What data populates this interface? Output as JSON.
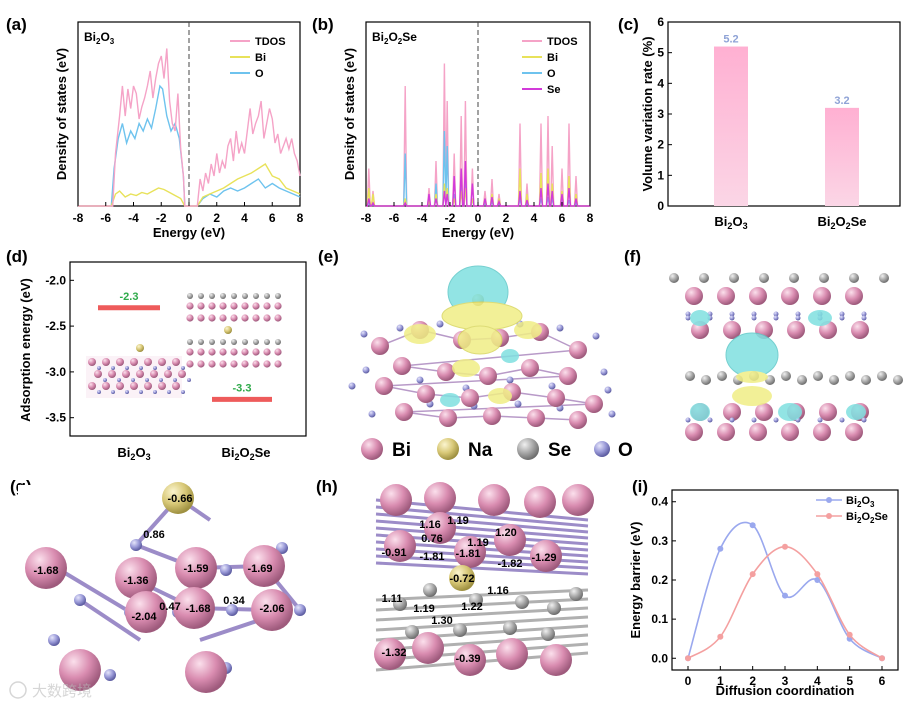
{
  "colors": {
    "tdos": "#F5A3C7",
    "bi": "#E8E25A",
    "o": "#6EC3EE",
    "se": "#D23AD9",
    "bar": "#FBB8D6",
    "bar_label": "#8FA3D6",
    "adsorption_bar": "#EE5B5B",
    "adsorption_label": "#2EAA4A",
    "atom_bi": "#D98CB0",
    "atom_na": "#D8C877",
    "atom_se": "#A8A8A8",
    "atom_o": "#9A9AD8",
    "iso_cyan": "#7FE0E0",
    "iso_yellow": "#F0EE86",
    "line_bi2o3": "#9AA8EE",
    "line_bi2o2se": "#F4A0A0"
  },
  "panel_labels": [
    "(a)",
    "(b)",
    "(c)",
    "(d)",
    "(e)",
    "(f)",
    "(g)",
    "(h)",
    "(i)"
  ],
  "legend_atoms": [
    "Bi",
    "Na",
    "Se",
    "O"
  ],
  "watermark": "大数跨境",
  "panel_g": {
    "labels": [
      "-0.66",
      "0.86",
      "-1.68",
      "-1.36",
      "-1.59",
      "-1.69",
      "0.47",
      "-2.04",
      "-1.68",
      "0.34",
      "-2.06"
    ]
  },
  "panel_h": {
    "labels": [
      "1.16",
      "1.19",
      "0.76",
      "1.20",
      "-1.81",
      "1.19",
      "-0.91",
      "-1.81",
      "-1.82",
      "-1.29",
      "-0.72",
      "1.19",
      "1.11",
      "1.22",
      "1.16",
      "1.30",
      "-1.32",
      "-0.39"
    ]
  },
  "chart_data": [
    {
      "id": "a",
      "type": "line",
      "inset_label": "Bi2O3",
      "xlabel": "Energy (eV)",
      "ylabel": "Density of states (eV)",
      "xlim": [
        -8,
        8
      ],
      "xticks": [
        "-8",
        "-6",
        "-4",
        "-2",
        "0",
        "2",
        "4",
        "6",
        "8"
      ],
      "fermi_level": 0,
      "legend": [
        "TDOS",
        "Bi",
        "O"
      ],
      "series": [
        {
          "name": "TDOS",
          "x": [
            -5.6,
            -5.5,
            -5.3,
            -5.0,
            -4.8,
            -4.6,
            -4.4,
            -4.2,
            -4.0,
            -3.8,
            -3.6,
            -3.4,
            -3.2,
            -3.0,
            -2.8,
            -2.6,
            -2.4,
            -2.2,
            -2.0,
            -1.8,
            -1.6,
            -1.4,
            -1.2,
            -1.0,
            -0.8,
            -0.6,
            -0.4,
            -0.3,
            0.6,
            0.8,
            1.0,
            1.2,
            1.4,
            1.6,
            1.8,
            2.0,
            2.2,
            2.4,
            2.6,
            2.8,
            3.0,
            3.2,
            3.4,
            3.6,
            3.8,
            4.0,
            4.2,
            4.4,
            4.6,
            4.8,
            5.0,
            5.2,
            5.4,
            5.6,
            5.8,
            6.0,
            6.2,
            6.4,
            6.6,
            6.8,
            7.0,
            7.2,
            7.4,
            7.6,
            7.8,
            8.0
          ],
          "y": [
            0,
            0,
            0.35,
            0.6,
            0.8,
            0.6,
            0.78,
            0.65,
            0.8,
            0.75,
            0.58,
            0.66,
            0.72,
            0.8,
            0.9,
            0.72,
            0.85,
            0.95,
            1.0,
            0.85,
            1.05,
            0.7,
            0.55,
            0.5,
            0.75,
            0.38,
            0.2,
            0,
            0,
            0.18,
            0.1,
            0.22,
            0.15,
            0.28,
            0.2,
            0.35,
            0.22,
            0.3,
            0.25,
            0.4,
            0.45,
            0.3,
            0.5,
            0.35,
            0.42,
            0.35,
            0.5,
            0.65,
            0.48,
            0.55,
            0.6,
            0.7,
            0.45,
            0.55,
            0.65,
            0.58,
            0.42,
            0.48,
            0.35,
            0.4,
            0.45,
            0.38,
            0.45,
            0.35,
            0.3,
            0.2
          ]
        },
        {
          "name": "Bi",
          "x": [
            -5.6,
            -5.3,
            -5.0,
            -4.6,
            -4.2,
            -3.8,
            -3.4,
            -3.0,
            -2.6,
            -2.2,
            -1.8,
            -1.4,
            -1.0,
            -0.6,
            -0.3,
            0.6,
            1.0,
            1.5,
            2.0,
            2.5,
            3.0,
            3.5,
            4.0,
            4.5,
            5.0,
            5.5,
            6.0,
            6.5,
            7.0,
            7.5,
            8.0
          ],
          "y": [
            0,
            0.08,
            0.1,
            0.06,
            0.08,
            0.07,
            0.09,
            0.08,
            0.1,
            0.12,
            0.11,
            0.09,
            0.07,
            0.05,
            0,
            0,
            0.06,
            0.08,
            0.1,
            0.12,
            0.15,
            0.18,
            0.2,
            0.22,
            0.25,
            0.28,
            0.2,
            0.18,
            0.12,
            0.1,
            0.08
          ]
        },
        {
          "name": "O",
          "x": [
            -5.6,
            -5.4,
            -5.1,
            -4.8,
            -4.5,
            -4.2,
            -3.9,
            -3.6,
            -3.3,
            -3.0,
            -2.7,
            -2.4,
            -2.1,
            -1.9,
            -1.6,
            -1.3,
            -1.0,
            -0.7,
            -0.4,
            -0.3,
            0.6,
            1.0,
            1.5,
            2.0,
            2.5,
            3.0,
            3.5,
            4.0,
            4.5,
            5.0,
            5.5,
            6.0,
            6.5,
            7.0,
            7.5,
            8.0
          ],
          "y": [
            0,
            0.25,
            0.45,
            0.55,
            0.42,
            0.5,
            0.45,
            0.55,
            0.5,
            0.58,
            0.52,
            0.65,
            0.8,
            0.78,
            0.6,
            0.5,
            0.55,
            0.45,
            0.2,
            0,
            0,
            0.05,
            0.08,
            0.06,
            0.1,
            0.12,
            0.1,
            0.12,
            0.15,
            0.18,
            0.12,
            0.15,
            0.12,
            0.1,
            0.08,
            0.06
          ]
        }
      ]
    },
    {
      "id": "b",
      "type": "line",
      "inset_label": "Bi2O2Se",
      "xlabel": "Energy (eV)",
      "ylabel": "Density of states (eV)",
      "xlim": [
        -8,
        8
      ],
      "xticks": [
        "-8",
        "-6",
        "-4",
        "-2",
        "0",
        "2",
        "4",
        "6",
        "8"
      ],
      "fermi_level": 0,
      "legend": [
        "TDOS",
        "Bi",
        "O",
        "Se"
      ],
      "peaks": [
        {
          "x": -7.8,
          "tdos": 0.25,
          "bi": 0.12,
          "o": 0.02,
          "se": 0.05
        },
        {
          "x": -7.5,
          "tdos": 0.1,
          "bi": 0.08,
          "o": 0.01,
          "se": 0.02
        },
        {
          "x": -5.2,
          "tdos": 0.8,
          "bi": 0.05,
          "o": 0.35,
          "se": 0.02
        },
        {
          "x": -3.5,
          "tdos": 0.12,
          "bi": 0.03,
          "o": 0.02,
          "se": 0.08
        },
        {
          "x": -3.0,
          "tdos": 0.3,
          "bi": 0.08,
          "o": 0.15,
          "se": 0.05
        },
        {
          "x": -2.4,
          "tdos": 0.95,
          "bi": 0.15,
          "o": 0.5,
          "se": 0.1
        },
        {
          "x": -2.2,
          "tdos": 0.7,
          "bi": 0.12,
          "o": 0.4,
          "se": 0.08
        },
        {
          "x": -1.7,
          "tdos": 0.35,
          "bi": 0.05,
          "o": 0.08,
          "se": 0.2
        },
        {
          "x": -1.2,
          "tdos": 0.6,
          "bi": 0.1,
          "o": 0.15,
          "se": 0.25
        },
        {
          "x": -0.9,
          "tdos": 0.7,
          "bi": 0.12,
          "o": 0.2,
          "se": 0.3
        },
        {
          "x": -0.4,
          "tdos": 0.25,
          "bi": 0.05,
          "o": 0.05,
          "se": 0.15
        },
        {
          "x": 0.5,
          "tdos": 0.1,
          "bi": 0.05,
          "o": 0.02,
          "se": 0.05
        },
        {
          "x": 1.0,
          "tdos": 0.18,
          "bi": 0.08,
          "o": 0.03,
          "se": 0.06
        },
        {
          "x": 1.5,
          "tdos": 0.08,
          "bi": 0.05,
          "o": 0.02,
          "se": 0.03
        },
        {
          "x": 3.0,
          "tdos": 0.55,
          "bi": 0.25,
          "o": 0.05,
          "se": 0.1
        },
        {
          "x": 3.5,
          "tdos": 0.15,
          "bi": 0.08,
          "o": 0.02,
          "se": 0.04
        },
        {
          "x": 4.5,
          "tdos": 0.55,
          "bi": 0.22,
          "o": 0.05,
          "se": 0.12
        },
        {
          "x": 5.0,
          "tdos": 0.6,
          "bi": 0.25,
          "o": 0.06,
          "se": 0.15
        },
        {
          "x": 5.3,
          "tdos": 0.4,
          "bi": 0.15,
          "o": 0.05,
          "se": 0.1
        },
        {
          "x": 6.0,
          "tdos": 0.25,
          "bi": 0.1,
          "o": 0.03,
          "se": 0.08
        },
        {
          "x": 6.5,
          "tdos": 0.55,
          "bi": 0.2,
          "o": 0.04,
          "se": 0.12
        },
        {
          "x": 7.0,
          "tdos": 0.2,
          "bi": 0.08,
          "o": 0.02,
          "se": 0.05
        }
      ]
    },
    {
      "id": "c",
      "type": "bar",
      "categories": [
        "Bi2O3",
        "Bi2O2Se"
      ],
      "values": [
        5.2,
        3.2
      ],
      "value_labels": [
        "5.2",
        "3.2"
      ],
      "ylabel": "Volume variation rate (%)",
      "ylim": [
        0,
        6
      ],
      "yticks": [
        "0",
        "1",
        "2",
        "3",
        "4",
        "5",
        "6"
      ]
    },
    {
      "id": "d",
      "type": "bar",
      "categories": [
        "Bi2O3",
        "Bi2O2Se"
      ],
      "values": [
        -2.3,
        -3.3
      ],
      "value_labels": [
        "-2.3",
        "-3.3"
      ],
      "ylabel": "Adsorption energy (eV)",
      "ylim": [
        -3.7,
        -1.8
      ],
      "yticks": [
        "-2.0",
        "-2.5",
        "-3.0",
        "-3.5"
      ]
    },
    {
      "id": "i",
      "type": "line",
      "xlabel": "Diffusion coordination",
      "ylabel": "Energy barrier (eV)",
      "xlim": [
        0,
        6
      ],
      "ylim": [
        -0.03,
        0.43
      ],
      "xticks": [
        "0",
        "1",
        "2",
        "3",
        "4",
        "5",
        "6"
      ],
      "yticks": [
        "0.0",
        "0.1",
        "0.2",
        "0.3",
        "0.4"
      ],
      "series": [
        {
          "name": "Bi2O3",
          "x": [
            0,
            1,
            2,
            3,
            4,
            5,
            6
          ],
          "y": [
            0.0,
            0.28,
            0.34,
            0.16,
            0.2,
            0.05,
            0.0
          ]
        },
        {
          "name": "Bi2O2Se",
          "x": [
            0,
            1,
            2,
            3,
            4,
            5,
            6
          ],
          "y": [
            0.0,
            0.055,
            0.215,
            0.285,
            0.215,
            0.06,
            0.0
          ]
        }
      ]
    }
  ]
}
